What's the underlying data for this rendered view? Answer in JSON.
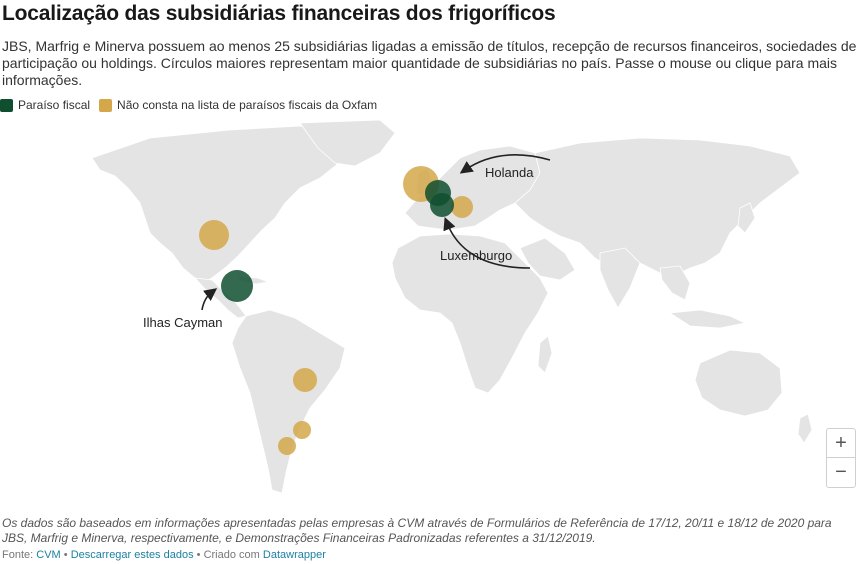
{
  "header": {
    "title": "Localização das subsidiárias financeiras dos frigoríficos",
    "description": "JBS, Marfrig e Minerva possuem ao menos 25 subsidiárias ligadas a emissão de títulos, recepção de recursos financeiros, sociedades de participação ou holdings. Círculos maiores representam maior quantidade de subsidiárias no país. Passe o mouse ou clique para mais informações."
  },
  "legend": [
    {
      "label": "Paraíso fiscal",
      "color": "#0f4f2f"
    },
    {
      "label": "Não consta na lista de paraísos fiscais da Oxfam",
      "color": "#d4a84a"
    }
  ],
  "colors": {
    "land": "#e4e4e4",
    "border": "#ffffff",
    "tax_haven": "#0f4f2f",
    "not_listed": "#d4a84a"
  },
  "map": {
    "annotations": {
      "holanda": "Holanda",
      "luxemburgo": "Luxemburgo",
      "ilhas_cayman": "Ilhas Cayman"
    }
  },
  "zoom": {
    "plus": "+",
    "minus": "−"
  },
  "footer": {
    "note": "Os dados são baseados em informações apresentadas pelas empresas à CVM através de Formulários de Referência de 17/12, 20/11 e 18/12 de 2020 para JBS, Marfrig e Minerva, respectivamente, e Demonstrações Financeiras Padronizadas referentes a 31/12/2019.",
    "source_prefix": "Fonte:",
    "source_link": "CVM",
    "download_link": "Descarregar estes dados",
    "created_prefix": "Criado com",
    "created_link": "Datawrapper"
  }
}
